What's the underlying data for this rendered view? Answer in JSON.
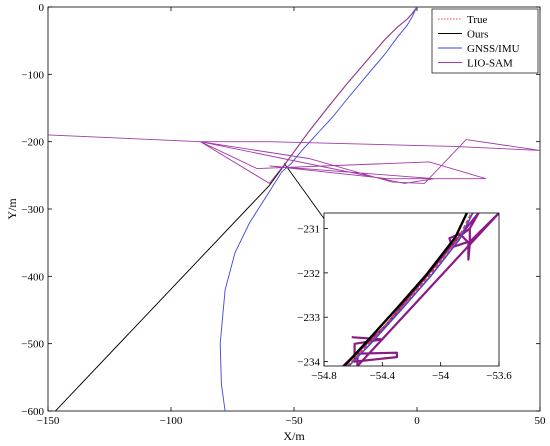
{
  "chart_data": [
    {
      "type": "line",
      "title": "",
      "xlabel": "X/m",
      "ylabel": "Y/m",
      "xlim": [
        -150,
        50
      ],
      "ylim": [
        -600,
        0
      ],
      "xticks": [
        -150,
        -100,
        -50,
        0,
        50
      ],
      "yticks": [
        0,
        -100,
        -200,
        -300,
        -400,
        -500,
        -600
      ],
      "grid": false,
      "legend_position": "top-right",
      "series": [
        {
          "name": "True",
          "color": "#e8413a",
          "dash": "dotted",
          "x": [
            -147,
            -60,
            -52,
            -44,
            -36,
            -28,
            -20,
            -13,
            -8,
            -4,
            -2,
            -1,
            0
          ],
          "y": [
            -600,
            -265,
            -225,
            -185,
            -148,
            -112,
            -78,
            -48,
            -30,
            -18,
            -10,
            -5,
            0
          ]
        },
        {
          "name": "Ours",
          "color": "#000000",
          "dash": "solid",
          "x": [
            -147,
            -60,
            -52,
            -44,
            -36,
            -28,
            -20,
            -13,
            -8,
            -4,
            -2,
            -1,
            0
          ],
          "y": [
            -600,
            -265,
            -225,
            -185,
            -148,
            -112,
            -78,
            -48,
            -30,
            -18,
            -10,
            -5,
            0
          ]
        },
        {
          "name": "GNSS/IMU",
          "color": "#3848e0",
          "dash": "solid",
          "x": [
            -78,
            -79.5,
            -80,
            -78,
            -74,
            -68,
            -61,
            -55,
            -51,
            -47,
            -43,
            -39,
            -34,
            -28,
            -20,
            -13,
            -8,
            -4,
            -2,
            -1,
            0
          ],
          "y": [
            -600,
            -560,
            -500,
            -420,
            -365,
            -320,
            -280,
            -245,
            -232,
            -214,
            -198,
            -182,
            -162,
            -135,
            -100,
            -70,
            -45,
            -27,
            -15,
            -7,
            0
          ],
          "note_hidden": false
        },
        {
          "name": "LIO-SAM",
          "color": "#a23aa8",
          "dash": "solid",
          "x": [
            -150,
            -88,
            -44,
            -10,
            3,
            20,
            50,
            15,
            -60,
            -88,
            -5,
            7,
            -60,
            -12,
            28,
            5,
            -65,
            -88,
            -60,
            -52,
            -44,
            -36,
            -28,
            -20,
            -13,
            -8,
            -4,
            -2,
            -1,
            0
          ],
          "y": [
            -190,
            -200,
            -225,
            -260,
            -262,
            -197,
            -213,
            -207,
            -200,
            -200,
            -262,
            -255,
            -236,
            -255,
            -255,
            -230,
            -240,
            -200,
            -262,
            -225,
            -185,
            -148,
            -112,
            -78,
            -48,
            -30,
            -18,
            -10,
            -5,
            0
          ]
        }
      ],
      "annotation_arrow": {
        "from": [
          -54,
          -232
        ],
        "to": [
          -51,
          -262
        ]
      }
    },
    {
      "type": "line",
      "title": "",
      "xlabel": "",
      "ylabel": "",
      "xlim": [
        -54.8,
        -53.6
      ],
      "ylim": [
        -234.1,
        -230.65
      ],
      "xticks": [
        -54.8,
        -54.4,
        -54,
        -53.6
      ],
      "xticklabels": [
        "−54.8",
        "−54.4",
        "−54",
        "−53.6"
      ],
      "yticks": [
        -231,
        -232,
        -233,
        -234
      ],
      "grid": false,
      "series": [
        {
          "name": "Ours",
          "color": "#000000",
          "x": [
            -54.66,
            -54.52,
            -54.3,
            -54.1,
            -53.9,
            -53.82
          ],
          "y": [
            -234.1,
            -233.6,
            -232.8,
            -232.05,
            -231.2,
            -230.65
          ]
        },
        {
          "name": "True",
          "color": "#e8413a",
          "x": [
            -54.64,
            -54.5,
            -54.28,
            -54.08,
            -53.88,
            -53.79
          ],
          "y": [
            -234.1,
            -233.62,
            -232.82,
            -232.07,
            -231.23,
            -230.65
          ]
        },
        {
          "name": "GNSS/IMU",
          "color": "#3848e0",
          "x": [
            -54.63,
            -54.49,
            -54.27,
            -54.07,
            -53.87,
            -53.78
          ],
          "y": [
            -234.1,
            -233.63,
            -232.83,
            -232.08,
            -231.24,
            -230.65
          ]
        },
        {
          "name": "LIO-SAM",
          "color": "#8a1a86",
          "x": [
            -54.67,
            -54.38,
            -53.74,
            -53.8,
            -53.86,
            -53.8,
            -53.81,
            -53.81,
            -53.92,
            -53.94,
            -53.82,
            -53.8,
            -53.74,
            -53.8,
            -53.8,
            -53.6,
            -54.57,
            -54.57,
            -54.57,
            -54.3,
            -54.3,
            -54.59,
            -54.59,
            -54.4,
            -54.61
          ],
          "y": [
            -234.1,
            -233.2,
            -230.65,
            -231.0,
            -231.15,
            -231.35,
            -231.7,
            -231.3,
            -231.42,
            -231.22,
            -231.05,
            -231.0,
            -230.65,
            -231.0,
            -231.3,
            -230.65,
            -234.1,
            -233.95,
            -233.82,
            -233.8,
            -233.9,
            -234.0,
            -233.6,
            -233.5,
            -233.45
          ]
        }
      ]
    }
  ]
}
